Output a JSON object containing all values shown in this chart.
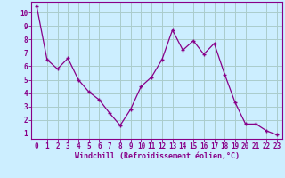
{
  "x": [
    0,
    1,
    2,
    3,
    4,
    5,
    6,
    7,
    8,
    9,
    10,
    11,
    12,
    13,
    14,
    15,
    16,
    17,
    18,
    19,
    20,
    21,
    22,
    23
  ],
  "y": [
    10.5,
    6.5,
    5.8,
    6.6,
    5.0,
    4.1,
    3.5,
    2.5,
    1.6,
    2.8,
    4.5,
    5.2,
    6.5,
    8.7,
    7.2,
    7.9,
    6.9,
    7.7,
    5.4,
    3.3,
    1.7,
    1.7,
    1.2,
    0.9
  ],
  "line_color": "#880088",
  "marker": "+",
  "marker_size": 3,
  "bg_color": "#cceeff",
  "grid_color": "#aacccc",
  "xlabel": "Windchill (Refroidissement éolien,°C)",
  "ylabel_ticks": [
    1,
    2,
    3,
    4,
    5,
    6,
    7,
    8,
    9,
    10
  ],
  "ylim": [
    0.6,
    10.8
  ],
  "xlim": [
    -0.5,
    23.5
  ],
  "axis_label_color": "#880088",
  "tick_label_color": "#880088",
  "spine_color": "#880088",
  "xlabel_fontsize": 6.0,
  "tick_fontsize": 5.5,
  "linewidth": 0.9
}
